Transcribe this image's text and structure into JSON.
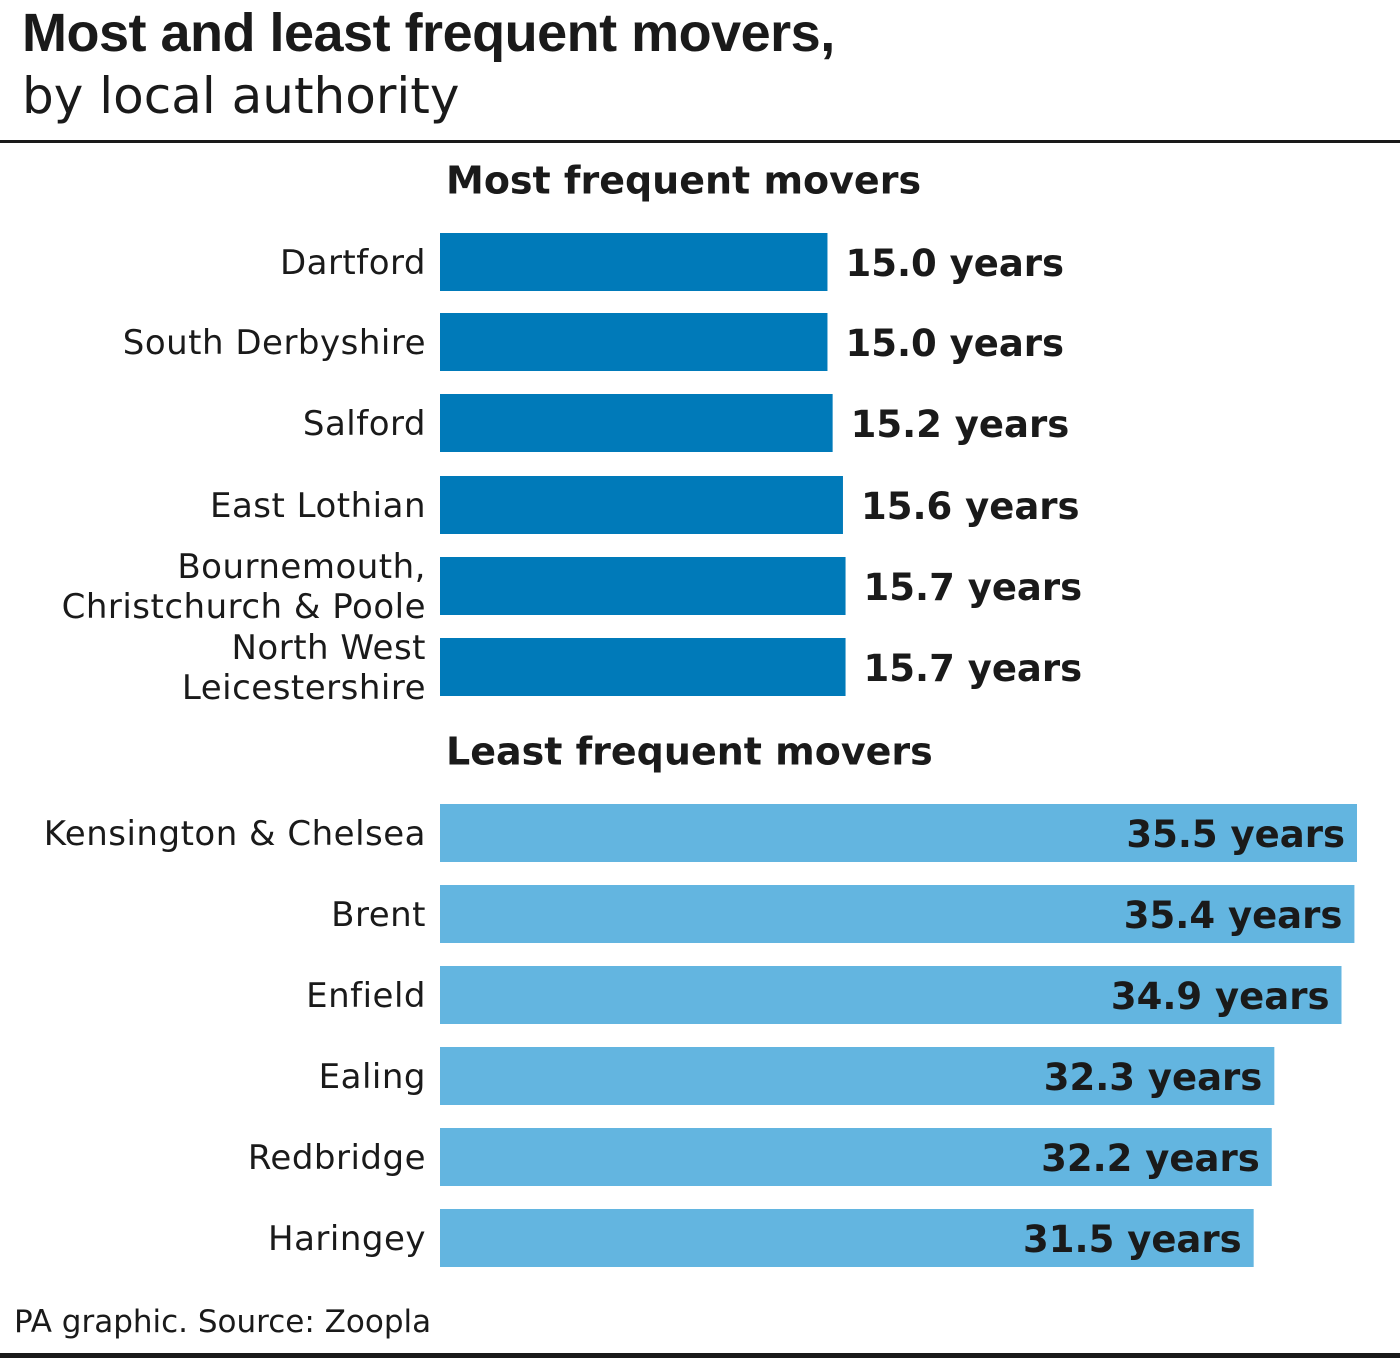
{
  "header": {
    "title": "Most and least frequent movers,",
    "subtitle": "by local authority"
  },
  "footer": {
    "source": "PA graphic. Source: Zoopla"
  },
  "colors": {
    "most": "#007ab9",
    "least": "#63b5e0",
    "text": "#1a1a1a"
  },
  "chart_data": [
    {
      "type": "bar",
      "orientation": "horizontal",
      "title": "Most frequent movers",
      "unit": "years",
      "categories": [
        "Dartford",
        "South Derbyshire",
        "Salford",
        "East Lothian",
        "Bournemouth, Christchurch & Poole",
        "North West Leicestershire"
      ],
      "category_lines": [
        [
          "Dartford"
        ],
        [
          "South Derbyshire"
        ],
        [
          "Salford"
        ],
        [
          "East Lothian"
        ],
        [
          "Bournemouth,",
          "Christchurch & Poole"
        ],
        [
          "North West",
          "Leicestershire"
        ]
      ],
      "values": [
        15.0,
        15.0,
        15.2,
        15.6,
        15.7,
        15.7
      ],
      "data_labels": [
        "15.0 years",
        "15.0 years",
        "15.2 years",
        "15.6 years",
        "15.7 years",
        "15.7 years"
      ],
      "label_position": "outside",
      "xlim": [
        0,
        35.5
      ]
    },
    {
      "type": "bar",
      "orientation": "horizontal",
      "title": "Least frequent movers",
      "unit": "years",
      "categories": [
        "Kensington & Chelsea",
        "Brent",
        "Enfield",
        "Ealing",
        "Redbridge",
        "Haringey"
      ],
      "category_lines": [
        [
          "Kensington & Chelsea"
        ],
        [
          "Brent"
        ],
        [
          "Enfield"
        ],
        [
          "Ealing"
        ],
        [
          "Redbridge"
        ],
        [
          "Haringey"
        ]
      ],
      "values": [
        35.5,
        35.4,
        34.9,
        32.3,
        32.2,
        31.5
      ],
      "data_labels": [
        "35.5 years",
        "35.4 years",
        "34.9 years",
        "32.3 years",
        "32.2 years",
        "31.5 years"
      ],
      "label_position": "inside-end",
      "xlim": [
        0,
        35.5
      ]
    }
  ]
}
